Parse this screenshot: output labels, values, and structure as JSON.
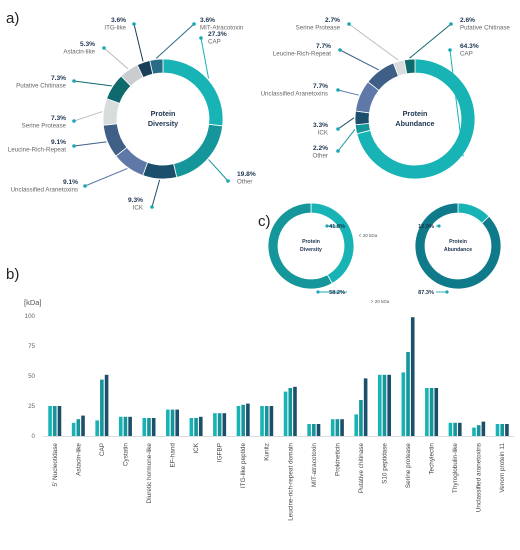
{
  "colors": {
    "teal_light": "#17b3b5",
    "teal_mid": "#14969a",
    "dark_navy": "#1b4f6b",
    "slate": "#3f5f86",
    "steel": "#5e79a8",
    "grey": "#d9dcdd",
    "dark_teal": "#0f6a6e",
    "dot": "#1aa7b4"
  },
  "panels": {
    "a": "a)",
    "b": "b)",
    "c": "c)"
  },
  "chart_data": [
    {
      "type": "pie",
      "panel": "a",
      "center_label": [
        "Protein",
        "Diversity"
      ],
      "slices": [
        {
          "label": "CAP",
          "value": 27.3,
          "color": "#17b3b5"
        },
        {
          "label": "Other",
          "value": 19.8,
          "color": "#14969a"
        },
        {
          "label": "ICK",
          "value": 9.3,
          "color": "#1b4f6b"
        },
        {
          "label": "Unclassified Aranetoxins",
          "value": 9.1,
          "color": "#5e79a8"
        },
        {
          "label": "Leucine-Rich-Repeat",
          "value": 9.1,
          "color": "#3f5f86"
        },
        {
          "label": "Serine Protease",
          "value": 7.3,
          "color": "#d9dcdd"
        },
        {
          "label": "Putative Chitinase",
          "value": 7.3,
          "color": "#0f6a6e"
        },
        {
          "label": "Astacin-like",
          "value": 5.3,
          "color": "#c9cdcf"
        },
        {
          "label": "ITG-like",
          "value": 3.6,
          "color": "#1a3f58"
        },
        {
          "label": "MIT-Atracotoxin",
          "value": 3.6,
          "color": "#2a6c88"
        }
      ]
    },
    {
      "type": "pie",
      "panel": "a",
      "center_label": [
        "Protein",
        "Abundance"
      ],
      "slices": [
        {
          "label": "CAP",
          "value": 64.3,
          "color": "#17b3b5"
        },
        {
          "label": "Other",
          "value": 2.2,
          "color": "#14969a"
        },
        {
          "label": "ICK",
          "value": 3.3,
          "color": "#1b4f6b"
        },
        {
          "label": "Unclassified Aranetoxins",
          "value": 7.7,
          "color": "#5e79a8"
        },
        {
          "label": "Leucine-Rich-Repeat",
          "value": 7.7,
          "color": "#3f5f86"
        },
        {
          "label": "Serine Protease",
          "value": 2.7,
          "color": "#d9dcdd"
        },
        {
          "label": "Putative Chitinase",
          "value": 2.6,
          "color": "#0f6a6e"
        }
      ]
    },
    {
      "type": "pie",
      "panel": "c",
      "center_label": [
        "Protein",
        "Diversity"
      ],
      "slices": [
        {
          "label": "41.8%",
          "note": "< 20 kDa",
          "value": 41.8,
          "color": "#17b3b5"
        },
        {
          "label": "58.2%",
          "note": "> 20 kDa",
          "value": 58.2,
          "color": "#14969a"
        }
      ]
    },
    {
      "type": "pie",
      "panel": "c",
      "center_label": [
        "Protein",
        "Abundance"
      ],
      "slices": [
        {
          "label": "12.9%",
          "note": "< 20 kDa",
          "value": 12.9,
          "color": "#17b3b5"
        },
        {
          "label": "87.3%",
          "note": "> 20 kDa",
          "value": 87.3,
          "color": "#0f7a8a"
        }
      ]
    },
    {
      "type": "bar",
      "panel": "b",
      "ylabel": "[kDa]",
      "ylim": [
        0,
        100
      ],
      "yticks": [
        0,
        25,
        50,
        75,
        100
      ],
      "grid": false,
      "series_colors": [
        "#17b3b5",
        "#14969a",
        "#1b7d96",
        "#1b4f6b"
      ],
      "categories": [
        {
          "name": "5' Nucleotidase",
          "values": [
            25,
            25,
            25
          ]
        },
        {
          "name": "Astacin-like",
          "values": [
            11,
            14,
            17
          ]
        },
        {
          "name": "CAP",
          "values": [
            13,
            47,
            51
          ]
        },
        {
          "name": "Cystatin",
          "values": [
            16,
            16,
            16
          ]
        },
        {
          "name": "Diuretic hormone-like",
          "values": [
            15,
            15,
            15
          ]
        },
        {
          "name": "EF-hand",
          "values": [
            22,
            22,
            22
          ]
        },
        {
          "name": "ICK",
          "values": [
            15,
            15,
            16
          ]
        },
        {
          "name": "IGFBP",
          "values": [
            19,
            19,
            19
          ]
        },
        {
          "name": "ITG-like peptide",
          "values": [
            25,
            26,
            27
          ]
        },
        {
          "name": "Kunitz",
          "values": [
            25,
            25,
            25
          ]
        },
        {
          "name": "Leucine-rich-repeat domain",
          "values": [
            37,
            40,
            41
          ]
        },
        {
          "name": "MIT-atracotoxin",
          "values": [
            10,
            10,
            10
          ]
        },
        {
          "name": "Prokineticin",
          "values": [
            14,
            14,
            14
          ]
        },
        {
          "name": "Putative chitinase",
          "values": [
            18,
            30,
            48
          ]
        },
        {
          "name": "S10 peptidase",
          "values": [
            51,
            51,
            51
          ]
        },
        {
          "name": "Serine protease",
          "values": [
            53,
            70,
            99
          ]
        },
        {
          "name": "Techylectin",
          "values": [
            40,
            40,
            40
          ]
        },
        {
          "name": "Thyroglobulin-like",
          "values": [
            11,
            11,
            11
          ]
        },
        {
          "name": "Unclassified aranetoxins",
          "values": [
            7,
            9,
            12
          ]
        },
        {
          "name": "Venom protein 11",
          "values": [
            10,
            10,
            10
          ]
        }
      ]
    }
  ]
}
